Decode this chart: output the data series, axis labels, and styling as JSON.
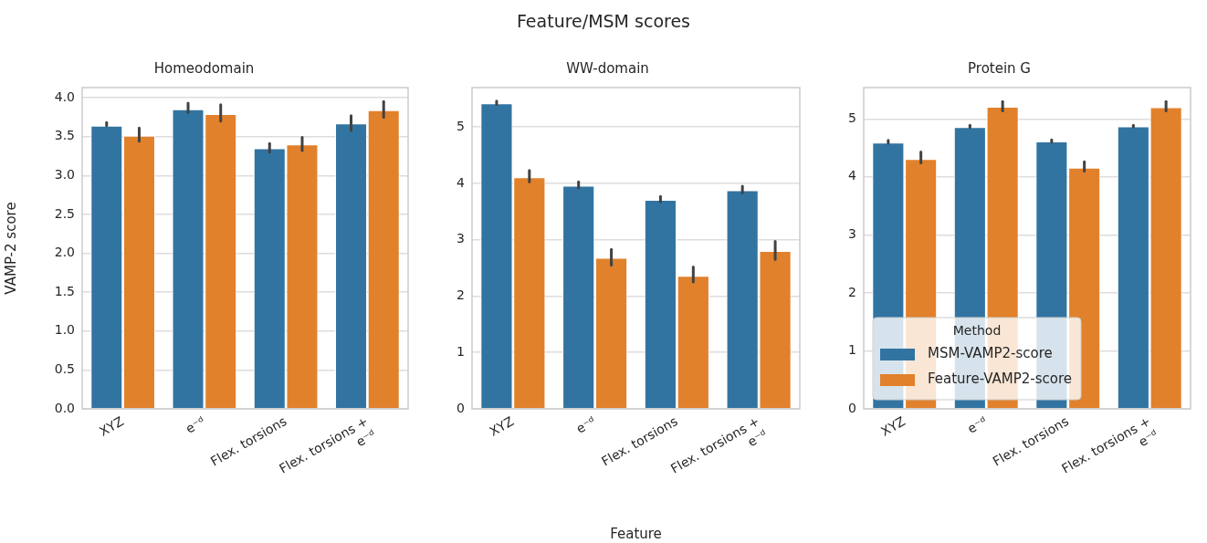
{
  "chart_data": [
    {
      "type": "bar",
      "title": "Homeodomain",
      "ylabel": "VAMP-2 score",
      "categories": [
        "XYZ",
        "e⁻ᵈ",
        "Flex. torsions",
        "Flex. torsions +\ne⁻ᵈ"
      ],
      "series": [
        {
          "color": "#3274a1",
          "values": [
            3.64,
            3.85,
            3.35,
            3.67
          ],
          "errors": [
            [
              3.64,
              3.68
            ],
            [
              3.81,
              3.93
            ],
            [
              3.3,
              3.41
            ],
            [
              3.58,
              3.77
            ]
          ]
        },
        {
          "color": "#e1812c",
          "values": [
            3.51,
            3.79,
            3.4,
            3.84
          ],
          "errors": [
            [
              3.44,
              3.61
            ],
            [
              3.7,
              3.91
            ],
            [
              3.32,
              3.49
            ],
            [
              3.75,
              3.95
            ]
          ]
        }
      ],
      "ylim": [
        0,
        4.13
      ],
      "yticks": [
        {
          "value": 0,
          "label": "0.0"
        },
        0.5,
        {
          "value": 1,
          "label": "1.0"
        },
        1.5,
        {
          "value": 2,
          "label": "2.0"
        },
        2.5,
        {
          "value": 3,
          "label": "3.0"
        },
        3.5,
        {
          "value": 4,
          "label": "4.0"
        }
      ],
      "grid": "y"
    },
    {
      "type": "bar",
      "title": "WW-domain",
      "xlabel": "Feature",
      "annotations": [
        "Feature/MSM scores"
      ],
      "categories": [
        "XYZ",
        "e⁻ᵈ",
        "Flex. torsions",
        "Flex. torsions +\ne⁻ᵈ"
      ],
      "series": [
        {
          "color": "#3274a1",
          "values": [
            5.42,
            3.96,
            3.71,
            3.88
          ],
          "errors": [
            [
              5.4,
              5.46
            ],
            [
              3.92,
              4.03
            ],
            [
              3.67,
              3.77
            ],
            [
              3.83,
              3.95
            ]
          ]
        },
        {
          "color": "#e1812c",
          "values": [
            4.11,
            2.68,
            2.36,
            2.8
          ],
          "errors": [
            [
              4.03,
              4.23
            ],
            [
              2.55,
              2.83
            ],
            [
              2.25,
              2.52
            ],
            [
              2.65,
              2.97
            ]
          ]
        }
      ],
      "ylim": [
        0,
        5.7
      ],
      "yticks": [
        0,
        1,
        2,
        3,
        4,
        5
      ],
      "grid": "y"
    },
    {
      "type": "bar",
      "title": "Protein G",
      "legend": "bottom left",
      "legend_title": "Method",
      "categories": [
        "XYZ",
        "e⁻ᵈ",
        "Flex. torsions",
        "Flex. torsions +\ne⁻ᵈ"
      ],
      "series": [
        {
          "name": "MSM-VAMP2-score",
          "color": "#3274a1",
          "values": [
            4.59,
            4.86,
            4.61,
            4.87
          ],
          "errors": [
            [
              4.58,
              4.63
            ],
            [
              4.85,
              4.89
            ],
            [
              4.6,
              4.64
            ],
            [
              4.86,
              4.89
            ]
          ]
        },
        {
          "name": "Feature-VAMP2-score",
          "color": "#e1812c",
          "values": [
            4.31,
            5.21,
            4.16,
            5.2
          ],
          "errors": [
            [
              4.24,
              4.43
            ],
            [
              5.14,
              5.3
            ],
            [
              4.1,
              4.26
            ],
            [
              5.14,
              5.3
            ]
          ]
        }
      ],
      "ylim": [
        0,
        5.54
      ],
      "yticks": [
        0,
        1,
        2,
        3,
        4,
        5
      ],
      "grid": "y"
    }
  ]
}
